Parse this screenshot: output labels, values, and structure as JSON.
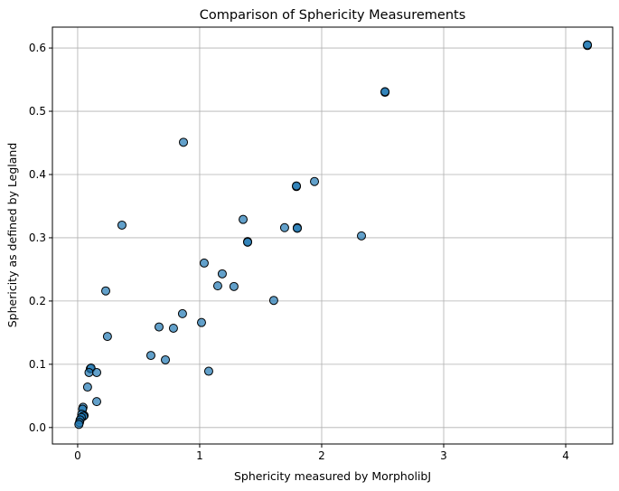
{
  "chart_data": {
    "type": "scatter",
    "title": "Comparison of Sphericity Measurements",
    "xlabel": "Sphericity measured by MorpholibJ",
    "ylabel": "Sphericity as defined by Legland",
    "xlim": [
      -0.207,
      4.385
    ],
    "ylim": [
      -0.026,
      0.633
    ],
    "xticks": [
      0,
      1,
      2,
      3,
      4
    ],
    "xtick_labels": [
      "0",
      "1",
      "2",
      "3",
      "4"
    ],
    "yticks": [
      0,
      0.1,
      0.2,
      0.3,
      0.4,
      0.5,
      0.6
    ],
    "ytick_labels": [
      "0.0",
      "0.1",
      "0.2",
      "0.3",
      "0.4",
      "0.5",
      "0.6"
    ],
    "grid": true,
    "colors": {
      "marker": "#1f77b4",
      "edge": "#000000",
      "grid": "#b0b0b0"
    },
    "x": [
      4.178,
      4.178,
      2.519,
      2.519,
      0.867,
      1.793,
      1.793,
      1.941,
      0.363,
      1.356,
      1.696,
      1.8,
      1.8,
      1.393,
      1.393,
      2.326,
      1.037,
      1.185,
      1.148,
      1.281,
      1.607,
      0.23,
      0.859,
      0.667,
      0.785,
      1.015,
      0.244,
      0.6,
      0.719,
      1.074,
      0.104,
      0.11,
      0.093,
      0.156,
      0.081,
      0.156,
      0.044,
      0.04,
      0.053,
      0.033,
      0.048,
      0.03,
      0.02,
      0.015,
      0.01
    ],
    "y": [
      0.604,
      0.605,
      0.53,
      0.531,
      0.451,
      0.381,
      0.382,
      0.389,
      0.32,
      0.329,
      0.316,
      0.316,
      0.315,
      0.294,
      0.293,
      0.303,
      0.26,
      0.243,
      0.224,
      0.223,
      0.201,
      0.216,
      0.18,
      0.159,
      0.157,
      0.166,
      0.144,
      0.114,
      0.107,
      0.089,
      0.093,
      0.094,
      0.087,
      0.087,
      0.064,
      0.041,
      0.032,
      0.029,
      0.019,
      0.021,
      0.018,
      0.016,
      0.012,
      0.008,
      0.005
    ]
  }
}
